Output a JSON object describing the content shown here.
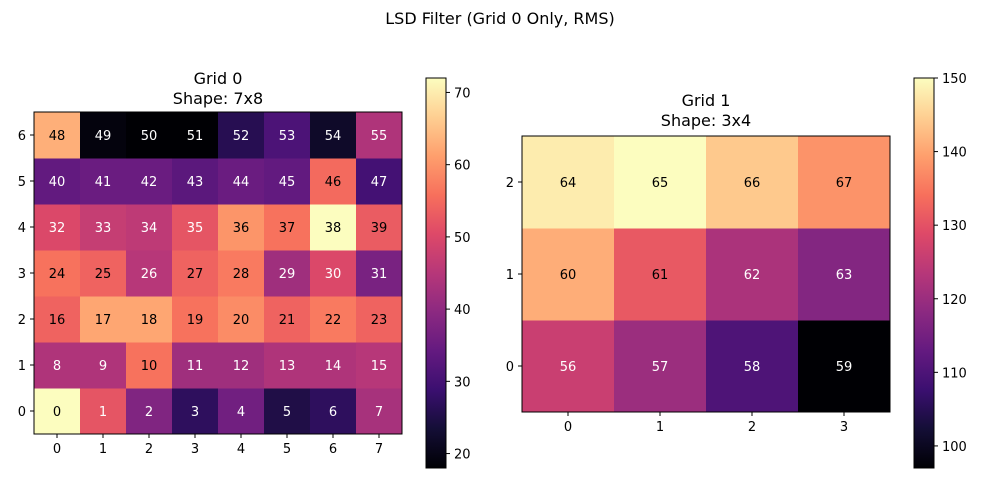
{
  "figure": {
    "suptitle": "LSD Filter (Grid 0 Only, RMS)"
  },
  "chart_data": [
    {
      "type": "heatmap",
      "title": "Grid 0",
      "subtitle": "Shape: 7x8",
      "colormap": "magma",
      "x_ticks": [
        "0",
        "1",
        "2",
        "3",
        "4",
        "5",
        "6",
        "7"
      ],
      "y_ticks": [
        "0",
        "1",
        "2",
        "3",
        "4",
        "5",
        "6"
      ],
      "rows_bottom_to_top": [
        {
          "labels": [
            0,
            1,
            2,
            3,
            4,
            5,
            6,
            7
          ],
          "values": [
            72,
            52,
            38,
            27,
            36,
            25,
            27,
            43
          ]
        },
        {
          "labels": [
            8,
            9,
            10,
            11,
            12,
            13,
            14,
            15
          ],
          "values": [
            44,
            44,
            56,
            42,
            42,
            44,
            44,
            45
          ]
        },
        {
          "labels": [
            16,
            17,
            18,
            19,
            20,
            21,
            22,
            23
          ],
          "values": [
            54,
            62,
            62,
            56,
            59,
            54,
            57,
            54
          ]
        },
        {
          "labels": [
            24,
            25,
            26,
            27,
            28,
            29,
            30,
            31
          ],
          "values": [
            56,
            54,
            45,
            54,
            57,
            42,
            50,
            37
          ]
        },
        {
          "labels": [
            32,
            33,
            34,
            35,
            36,
            37,
            38,
            39
          ],
          "values": [
            50,
            47,
            46,
            52,
            60,
            56,
            72,
            53
          ]
        },
        {
          "labels": [
            40,
            41,
            42,
            43,
            44,
            45,
            46,
            47
          ],
          "values": [
            34,
            35,
            35,
            33,
            35,
            34,
            55,
            30
          ]
        },
        {
          "labels": [
            48,
            49,
            50,
            51,
            52,
            53,
            54,
            55
          ],
          "values": [
            63,
            19,
            18,
            18,
            26,
            31,
            22,
            44
          ]
        }
      ],
      "colorbar": {
        "min": 18,
        "max": 72,
        "ticks": [
          20,
          30,
          40,
          50,
          60,
          70
        ]
      }
    },
    {
      "type": "heatmap",
      "title": "Grid 1",
      "subtitle": "Shape: 3x4",
      "colormap": "magma",
      "x_ticks": [
        "0",
        "1",
        "2",
        "3"
      ],
      "y_ticks": [
        "0",
        "1",
        "2"
      ],
      "rows_bottom_to_top": [
        {
          "labels": [
            56,
            57,
            58,
            59
          ],
          "values": [
            126,
            120,
            110,
            97
          ]
        },
        {
          "labels": [
            60,
            61,
            62,
            63
          ],
          "values": [
            141,
            131,
            122,
            117
          ]
        },
        {
          "labels": [
            64,
            65,
            66,
            67
          ],
          "values": [
            148,
            150,
            144,
            138
          ]
        }
      ],
      "colorbar": {
        "min": 97,
        "max": 150,
        "ticks": [
          100,
          110,
          120,
          130,
          140,
          150
        ]
      }
    }
  ]
}
